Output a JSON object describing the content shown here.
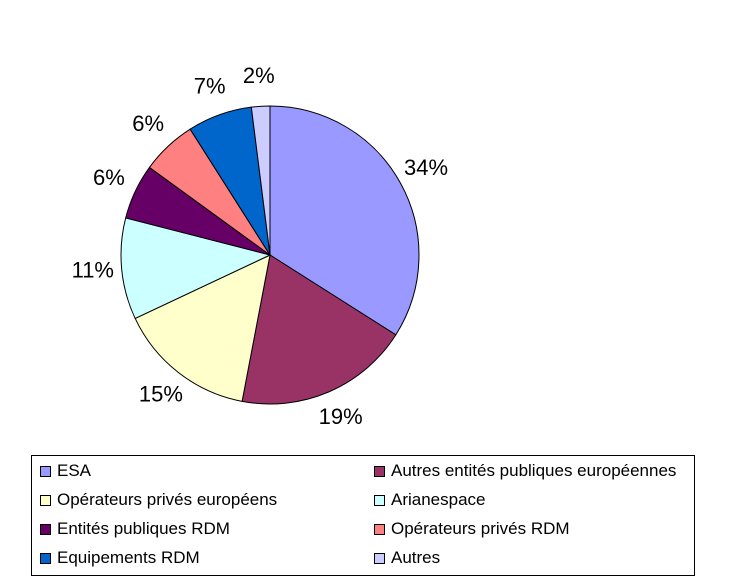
{
  "chart_data": {
    "type": "pie",
    "title": "",
    "slices": [
      {
        "name": "ESA",
        "value": 34,
        "label": "34%",
        "color": "#9999ff"
      },
      {
        "name": "Autres entités publiques européennes",
        "value": 19,
        "label": "19%",
        "color": "#993366"
      },
      {
        "name": "Opérateurs privés européens",
        "value": 15,
        "label": "15%",
        "color": "#ffffcc"
      },
      {
        "name": "Arianespace",
        "value": 11,
        "label": "11%",
        "color": "#ccffff"
      },
      {
        "name": "Entités publiques RDM",
        "value": 6,
        "label": "6%",
        "color": "#660066"
      },
      {
        "name": "Opérateurs privés RDM",
        "value": 6,
        "label": "6%",
        "color": "#ff8080"
      },
      {
        "name": "Equipements RDM",
        "value": 7,
        "label": "7%",
        "color": "#0066cc"
      },
      {
        "name": "Autres",
        "value": 2,
        "label": "2%",
        "color": "#ccccff"
      }
    ],
    "legend_position": "bottom"
  }
}
